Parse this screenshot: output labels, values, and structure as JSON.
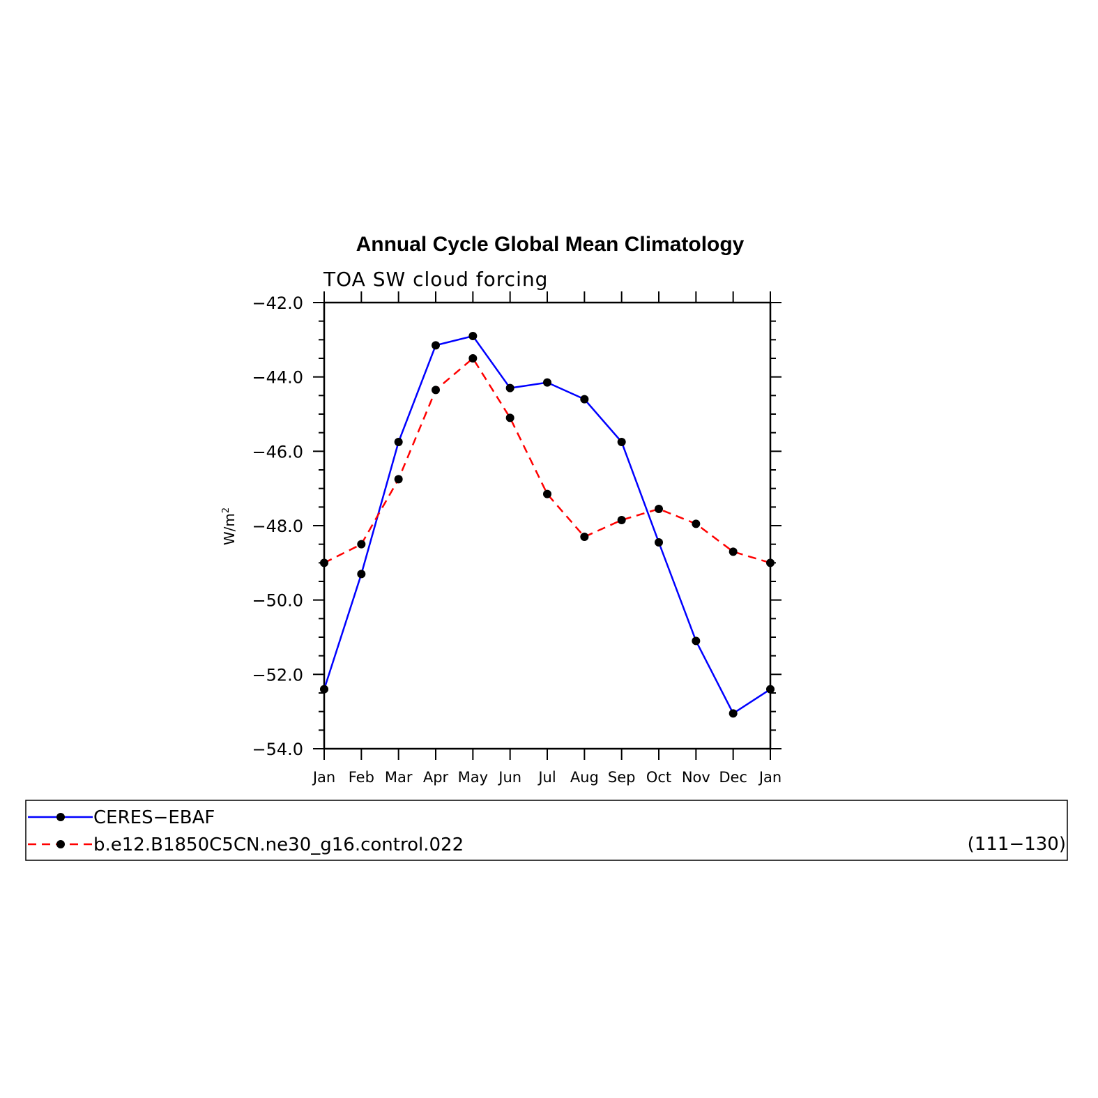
{
  "chart_data": {
    "type": "line",
    "title": "Annual Cycle Global Mean Climatology",
    "subtitle": "TOA SW cloud forcing",
    "ylabel": "W/m",
    "ylabel_superscript": "2",
    "xlabel": "",
    "ylim": [
      -54.0,
      -42.0
    ],
    "yticks": [
      "−42.0",
      "−44.0",
      "−46.0",
      "−48.0",
      "−50.0",
      "−52.0",
      "−54.0"
    ],
    "ytick_values": [
      -42,
      -44,
      -46,
      -48,
      -50,
      -52,
      -54
    ],
    "categories": [
      "Jan",
      "Feb",
      "Mar",
      "Apr",
      "May",
      "Jun",
      "Jul",
      "Aug",
      "Sep",
      "Oct",
      "Nov",
      "Dec",
      "Jan"
    ],
    "series": [
      {
        "name": "CERES−EBAF",
        "color": "#0000ff",
        "dash": "solid",
        "values": [
          -52.4,
          -49.3,
          -45.75,
          -43.15,
          -42.9,
          -44.3,
          -44.15,
          -44.6,
          -45.75,
          -48.45,
          -51.1,
          -53.05,
          -52.4
        ]
      },
      {
        "name": "b.e12.B1850C5CN.ne30_g16.control.022",
        "color": "#ff0000",
        "dash": "dashed",
        "values": [
          -49.0,
          -48.5,
          -46.75,
          -44.35,
          -43.5,
          -45.1,
          -47.15,
          -48.3,
          -47.85,
          -47.55,
          -47.95,
          -48.7,
          -49.0
        ]
      }
    ],
    "legend": {
      "placement": "bottom",
      "entries": [
        "CERES−EBAF",
        "b.e12.B1850C5CN.ne30_g16.control.022"
      ],
      "note": "(111−130)"
    },
    "grid": false
  }
}
